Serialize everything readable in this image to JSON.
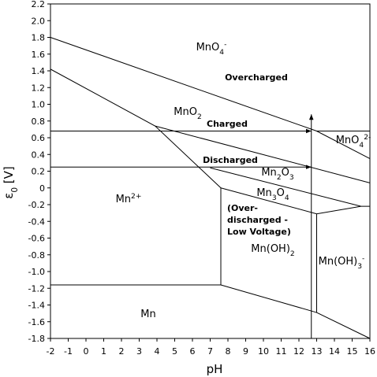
{
  "chart_data": {
    "type": "line",
    "x_label": "pH",
    "y_label": [
      {
        "text": "ε"
      },
      {
        "text": "0",
        "shift": "sub"
      },
      {
        "text": " [V]"
      }
    ],
    "xlim": [
      -2,
      16
    ],
    "ylim": [
      -1.8,
      2.2
    ],
    "xticks": [
      -2,
      -1,
      0,
      1,
      2,
      3,
      4,
      5,
      6,
      7,
      8,
      9,
      10,
      11,
      12,
      13,
      14,
      15,
      16
    ],
    "yticks": [
      -1.8,
      -1.6,
      -1.4,
      -1.2,
      {
        "value": -1,
        "label": "-1.0"
      },
      -0.8,
      -0.6,
      -0.4,
      -0.2,
      0,
      0.2,
      0.4,
      0.6,
      0.8,
      {
        "value": 1,
        "label": "1.0"
      },
      1.2,
      1.4,
      1.6,
      1.8,
      {
        "value": 2,
        "label": "2.0"
      },
      2.2
    ],
    "color": "#000000",
    "boundaries": [
      {
        "x": [
          -2,
          13,
          16
        ],
        "y": [
          1.8,
          0.68,
          0.35
        ]
      },
      {
        "x": [
          13,
          16
        ],
        "y": [
          0.68,
          0.68
        ]
      },
      {
        "x": [
          -2,
          3.9,
          7.6,
          7.6
        ],
        "y": [
          1.42,
          0.74,
          0,
          -1.16
        ]
      },
      {
        "x": [
          -2,
          7.6
        ],
        "y": [
          -1.16,
          -1.16
        ]
      },
      {
        "x": [
          3.9,
          16
        ],
        "y": [
          0.74,
          0.06
        ]
      },
      {
        "x": [
          7.0,
          15.5,
          16
        ],
        "y": [
          0.24,
          -0.22,
          -0.22
        ]
      },
      {
        "x": [
          7.6,
          13,
          15.5
        ],
        "y": [
          0,
          -0.31,
          -0.22
        ]
      },
      {
        "x": [
          13,
          13,
          16
        ],
        "y": [
          -0.31,
          -1.49,
          -1.8
        ]
      },
      {
        "x": [
          7.6,
          13
        ],
        "y": [
          -1.16,
          -1.49
        ]
      }
    ],
    "arrows": [
      {
        "x": [
          -2,
          12.7
        ],
        "y": [
          0.68,
          0.68
        ]
      },
      {
        "x": [
          -2,
          12.7
        ],
        "y": [
          0.25,
          0.25
        ]
      },
      {
        "x": [
          12.7,
          12.7
        ],
        "y": [
          -1.8,
          0.88
        ]
      }
    ],
    "annotations": [
      {
        "parts": [
          {
            "text": "MnO"
          },
          {
            "text": "4",
            "shift": "sub"
          },
          {
            "text": "-",
            "shift": "super"
          }
        ]
      },
      {
        "parts": [
          {
            "text": "Overcharged"
          }
        ],
        "bold": true
      },
      {
        "parts": [
          {
            "text": "MnO"
          },
          {
            "text": "2",
            "shift": "sub"
          }
        ]
      },
      {
        "parts": [
          {
            "text": "Charged"
          }
        ],
        "bold": true
      },
      {
        "parts": [
          {
            "text": "MnO"
          },
          {
            "text": "4",
            "shift": "sub"
          },
          {
            "text": "2-",
            "shift": "super"
          }
        ]
      },
      {
        "parts": [
          {
            "text": "Discharged"
          }
        ],
        "bold": true
      },
      {
        "parts": [
          {
            "text": "Mn"
          },
          {
            "text": "2",
            "shift": "sub"
          },
          {
            "text": "O"
          },
          {
            "text": "3",
            "shift": "sub"
          }
        ]
      },
      {
        "parts": [
          {
            "text": "Mn"
          },
          {
            "text": "3",
            "shift": "sub"
          },
          {
            "text": "O"
          },
          {
            "text": "4",
            "shift": "sub"
          }
        ]
      },
      {
        "parts": [
          {
            "text": "Mn"
          },
          {
            "text": "2+",
            "shift": "super"
          }
        ]
      },
      {
        "parts": [
          {
            "text": "(Over-"
          }
        ],
        "bold": true
      },
      {
        "parts": [
          {
            "text": "discharged -"
          }
        ],
        "bold": true
      },
      {
        "parts": [
          {
            "text": "Low Voltage)"
          }
        ],
        "bold": true
      },
      {
        "parts": [
          {
            "text": "Mn(OH)"
          },
          {
            "text": "2",
            "shift": "sub"
          }
        ]
      },
      {
        "parts": [
          {
            "text": "Mn(OH)"
          },
          {
            "text": "3",
            "shift": "sub"
          },
          {
            "text": "-",
            "shift": "super"
          }
        ]
      },
      {
        "parts": [
          {
            "text": "Mn"
          }
        ]
      }
    ]
  }
}
